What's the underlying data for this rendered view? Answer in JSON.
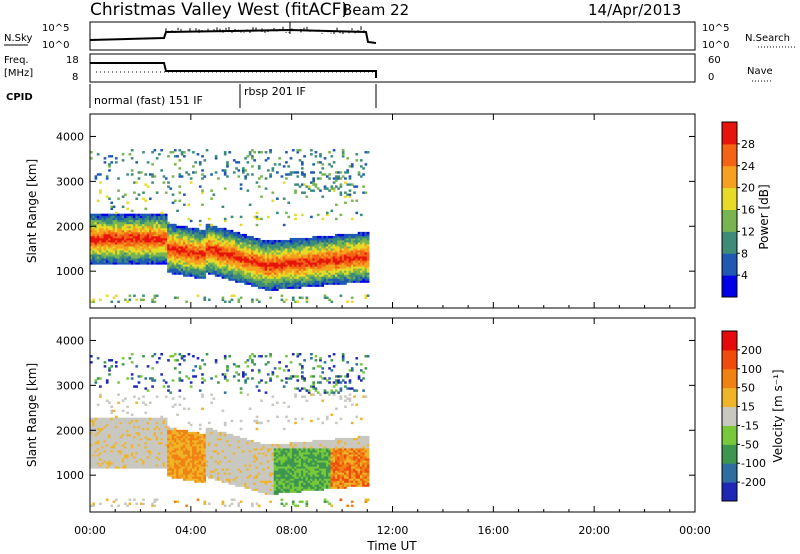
{
  "header": {
    "site": "Christmas Valley West (fitACF)",
    "beam": "Beam 22",
    "date": "14/Apr/2013"
  },
  "strips": {
    "nsky_label": "N.Sky",
    "nsky_ticks": [
      "10^5",
      "10^0"
    ],
    "nsearch_label": "N.Search",
    "nsearch_ticks": [
      "10^5",
      "10^0"
    ],
    "freq_label": "Freq.",
    "freq_unit": "[MHz]",
    "freq_ticks": [
      "18",
      "8"
    ],
    "nave_label": "Nave",
    "nave_ticks": [
      "60",
      "0"
    ],
    "cpid_label": "CPID",
    "cpid_modes": [
      "normal (fast) 151 IF",
      "rbsp 201 IF"
    ]
  },
  "chart_data": [
    {
      "type": "heatmap",
      "panel": "power",
      "ylabel": "Slant Range [km]",
      "yticks": [
        "4000",
        "3000",
        "2000",
        "1000"
      ],
      "ylim": [
        180,
        4500
      ],
      "colorbar_label": "Power [dB]",
      "colorbar_ticks": [
        "28",
        "24",
        "20",
        "16",
        "12",
        "8",
        "4"
      ],
      "colors": [
        "#0000e6",
        "#1e5ab4",
        "#3c8c78",
        "#78b450",
        "#e6dc28",
        "#f5a01e",
        "#f56414",
        "#e6140a"
      ],
      "scale": [
        0,
        32
      ]
    },
    {
      "type": "heatmap",
      "panel": "velocity",
      "ylabel": "Slant Range [km]",
      "yticks": [
        "4000",
        "3000",
        "2000",
        "1000"
      ],
      "ylim": [
        180,
        4500
      ],
      "colorbar_label": "Velocity [m s⁻¹]",
      "colorbar_ticks": [
        "200",
        "100",
        "50",
        "15",
        "-15",
        "-50",
        "-100",
        "-200"
      ],
      "colors": [
        "#1e28b4",
        "#2d6ea0",
        "#3c9650",
        "#78c83c",
        "#c8c8c0",
        "#f0b428",
        "#f08214",
        "#f04b0a",
        "#e60a0a"
      ],
      "scale": [
        -250,
        250
      ]
    }
  ],
  "xaxis": {
    "ticks": [
      "00:00",
      "04:00",
      "08:00",
      "12:00",
      "16:00",
      "20:00",
      "00:00"
    ],
    "label": "Time UT"
  }
}
